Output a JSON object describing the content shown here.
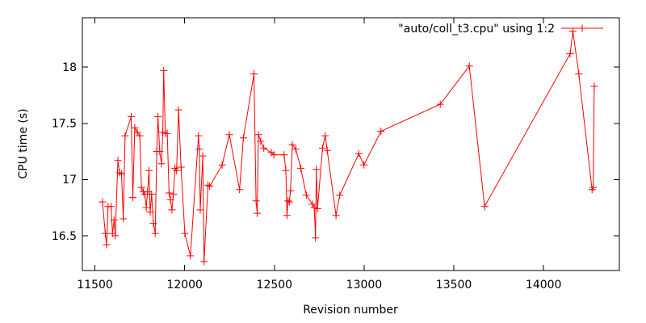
{
  "chart_data": {
    "type": "line",
    "style": "linespoints",
    "title": "",
    "xlabel": "Revision number",
    "ylabel": "CPU time (s)",
    "xlim": [
      11430,
      14422
    ],
    "ylim": [
      16.19,
      18.44
    ],
    "x_ticks": [
      11500,
      12000,
      12500,
      13000,
      13500,
      14000
    ],
    "y_ticks": [
      16.5,
      17,
      17.5,
      18
    ],
    "grid": false,
    "legend_position": "top-right",
    "marker": "plus",
    "line_color": "#ff0000",
    "axis_color": "#000000",
    "background_color": "#ffffff",
    "series": [
      {
        "name": "\"auto/coll_t3.cpu\" using 1:2",
        "points": [
          [
            11542,
            16.8
          ],
          [
            11558,
            16.52
          ],
          [
            11565,
            16.42
          ],
          [
            11573,
            16.76
          ],
          [
            11590,
            16.76
          ],
          [
            11598,
            16.52
          ],
          [
            11607,
            16.64
          ],
          [
            11613,
            16.5
          ],
          [
            11628,
            17.17
          ],
          [
            11637,
            17.06
          ],
          [
            11648,
            17.05
          ],
          [
            11658,
            16.65
          ],
          [
            11668,
            17.39
          ],
          [
            11702,
            17.56
          ],
          [
            11711,
            16.84
          ],
          [
            11722,
            17.46
          ],
          [
            11736,
            17.42
          ],
          [
            11750,
            17.39
          ],
          [
            11759,
            16.93
          ],
          [
            11770,
            16.89
          ],
          [
            11778,
            16.87
          ],
          [
            11786,
            16.75
          ],
          [
            11793,
            16.89
          ],
          [
            11801,
            17.08
          ],
          [
            11808,
            16.71
          ],
          [
            11816,
            16.87
          ],
          [
            11826,
            16.61
          ],
          [
            11836,
            16.52
          ],
          [
            11845,
            17.25
          ],
          [
            11851,
            17.56
          ],
          [
            11861,
            17.25
          ],
          [
            11871,
            17.14
          ],
          [
            11878,
            17.42
          ],
          [
            11883,
            17.97
          ],
          [
            11892,
            17.41
          ],
          [
            11903,
            17.41
          ],
          [
            11913,
            16.88
          ],
          [
            11921,
            16.82
          ],
          [
            11929,
            16.73
          ],
          [
            11937,
            16.87
          ],
          [
            11946,
            17.1
          ],
          [
            11955,
            17.08
          ],
          [
            11966,
            17.62
          ],
          [
            11980,
            17.11
          ],
          [
            12001,
            16.52
          ],
          [
            12032,
            16.32
          ],
          [
            12077,
            17.39
          ],
          [
            12082,
            17.27
          ],
          [
            12087,
            16.73
          ],
          [
            12101,
            17.21
          ],
          [
            12108,
            16.27
          ],
          [
            12130,
            16.95
          ],
          [
            12139,
            16.94
          ],
          [
            12209,
            17.13
          ],
          [
            12249,
            17.4
          ],
          [
            12306,
            16.91
          ],
          [
            12327,
            17.37
          ],
          [
            12386,
            17.94
          ],
          [
            12398,
            16.81
          ],
          [
            12404,
            16.7
          ],
          [
            12411,
            17.4
          ],
          [
            12424,
            17.34
          ],
          [
            12441,
            17.28
          ],
          [
            12483,
            17.24
          ],
          [
            12497,
            17.22
          ],
          [
            12554,
            17.22
          ],
          [
            12564,
            17.08
          ],
          [
            12570,
            16.68
          ],
          [
            12576,
            16.81
          ],
          [
            12583,
            16.8
          ],
          [
            12590,
            16.9
          ],
          [
            12600,
            17.31
          ],
          [
            12619,
            17.27
          ],
          [
            12647,
            17.1
          ],
          [
            12678,
            16.86
          ],
          [
            12712,
            16.78
          ],
          [
            12722,
            16.75
          ],
          [
            12729,
            16.48
          ],
          [
            12734,
            17.09
          ],
          [
            12740,
            16.74
          ],
          [
            12768,
            17.28
          ],
          [
            12783,
            17.39
          ],
          [
            12794,
            17.26
          ],
          [
            12843,
            16.68
          ],
          [
            12864,
            16.86
          ],
          [
            12970,
            17.23
          ],
          [
            12999,
            17.13
          ],
          [
            13094,
            17.43
          ],
          [
            13424,
            17.67
          ],
          [
            13586,
            18.01
          ],
          [
            13671,
            16.76
          ],
          [
            14148,
            18.12
          ],
          [
            14163,
            18.32
          ],
          [
            14196,
            17.94
          ],
          [
            14270,
            16.91
          ],
          [
            14276,
            16.93
          ],
          [
            14282,
            17.83
          ]
        ]
      }
    ]
  }
}
